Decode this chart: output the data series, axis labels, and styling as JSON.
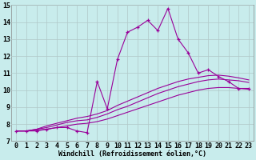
{
  "xlabel": "Windchill (Refroidissement éolien,°C)",
  "ylabel": "",
  "bg_color": "#c8ecec",
  "line_color": "#990099",
  "xlim": [
    -0.5,
    23.5
  ],
  "ylim": [
    7,
    15
  ],
  "yticks": [
    7,
    8,
    9,
    10,
    11,
    12,
    13,
    14,
    15
  ],
  "xticks": [
    0,
    1,
    2,
    3,
    4,
    5,
    6,
    7,
    8,
    9,
    10,
    11,
    12,
    13,
    14,
    15,
    16,
    17,
    18,
    19,
    20,
    21,
    22,
    23
  ],
  "line1_x": [
    0,
    1,
    2,
    3,
    4,
    5,
    6,
    7,
    8,
    9,
    10,
    11,
    12,
    13,
    14,
    15,
    16,
    17,
    18,
    19,
    20,
    21,
    22,
    23
  ],
  "line1_y": [
    7.6,
    7.6,
    7.6,
    7.7,
    7.8,
    7.8,
    7.6,
    7.5,
    10.5,
    8.9,
    11.8,
    13.4,
    13.7,
    14.1,
    13.5,
    14.8,
    13.0,
    12.2,
    11.0,
    11.2,
    10.8,
    10.5,
    10.1,
    10.1
  ],
  "line2_x": [
    0,
    1,
    2,
    3,
    4,
    5,
    6,
    7,
    8,
    9,
    10,
    11,
    12,
    13,
    14,
    15,
    16,
    17,
    18,
    19,
    20,
    21,
    22,
    23
  ],
  "line2_y": [
    7.6,
    7.6,
    7.65,
    7.7,
    7.8,
    7.9,
    8.0,
    8.05,
    8.15,
    8.3,
    8.5,
    8.7,
    8.9,
    9.1,
    9.3,
    9.5,
    9.7,
    9.85,
    10.0,
    10.1,
    10.15,
    10.15,
    10.1,
    10.05
  ],
  "line3_x": [
    0,
    1,
    2,
    3,
    4,
    5,
    6,
    7,
    8,
    9,
    10,
    11,
    12,
    13,
    14,
    15,
    16,
    17,
    18,
    19,
    20,
    21,
    22,
    23
  ],
  "line3_y": [
    7.6,
    7.6,
    7.7,
    7.8,
    7.95,
    8.1,
    8.2,
    8.25,
    8.4,
    8.6,
    8.85,
    9.05,
    9.3,
    9.55,
    9.8,
    10.0,
    10.2,
    10.35,
    10.5,
    10.6,
    10.65,
    10.6,
    10.55,
    10.45
  ],
  "line4_x": [
    0,
    1,
    2,
    3,
    4,
    5,
    6,
    7,
    8,
    9,
    10,
    11,
    12,
    13,
    14,
    15,
    16,
    17,
    18,
    19,
    20,
    21,
    22,
    23
  ],
  "line4_y": [
    7.6,
    7.6,
    7.7,
    7.9,
    8.05,
    8.2,
    8.35,
    8.45,
    8.6,
    8.8,
    9.1,
    9.35,
    9.6,
    9.85,
    10.1,
    10.3,
    10.5,
    10.65,
    10.75,
    10.85,
    10.88,
    10.82,
    10.72,
    10.6
  ],
  "xlabel_fontsize": 6,
  "tick_fontsize": 6,
  "grid_color": "#b0c8c8"
}
